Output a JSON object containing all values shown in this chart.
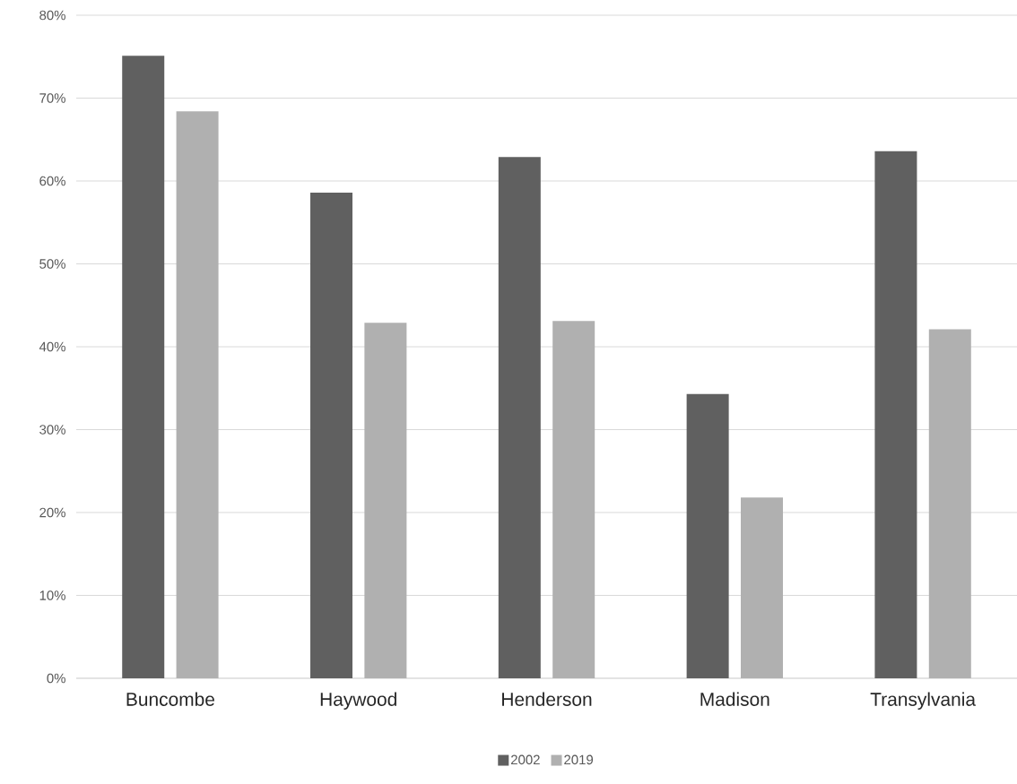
{
  "chart_data": {
    "type": "bar",
    "categories": [
      "Buncombe",
      "Haywood",
      "Henderson",
      "Madison",
      "Transylvania"
    ],
    "series": [
      {
        "name": "2002",
        "color": "#606060",
        "values": [
          75.1,
          58.6,
          62.9,
          34.3,
          63.6
        ]
      },
      {
        "name": "2019",
        "color": "#b0b0b0",
        "values": [
          68.4,
          42.9,
          43.1,
          21.8,
          42.1
        ]
      }
    ],
    "ylim": [
      0,
      80
    ],
    "yticks": [
      {
        "value": 0,
        "label": "0%"
      },
      {
        "value": 10,
        "label": "10%"
      },
      {
        "value": 20,
        "label": "20%"
      },
      {
        "value": 30,
        "label": "30%"
      },
      {
        "value": 40,
        "label": "40%"
      },
      {
        "value": 50,
        "label": "50%"
      },
      {
        "value": 60,
        "label": "60%"
      },
      {
        "value": 70,
        "label": "70%"
      },
      {
        "value": 80,
        "label": "80%"
      }
    ],
    "grid": "y",
    "legend": "bottom"
  }
}
